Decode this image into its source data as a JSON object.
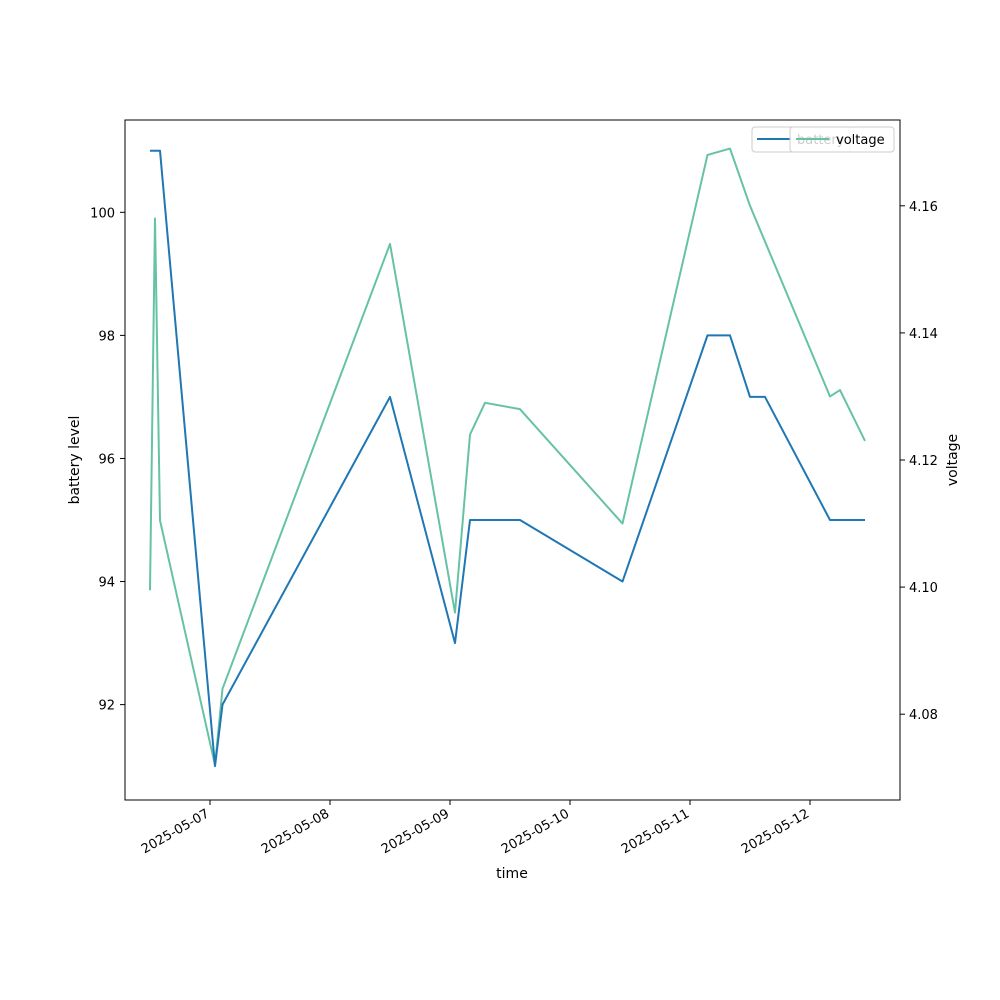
{
  "chart_data": {
    "type": "line",
    "xlabel": "time",
    "ylabel": "battery level",
    "ylabel_right": "voltage",
    "x_ticks": [
      "2025-05-07",
      "2025-05-08",
      "2025-05-09",
      "2025-05-10",
      "2025-05-11",
      "2025-05-12"
    ],
    "x_range": [
      "2025-05-06 07:00",
      "2025-05-12 18:00"
    ],
    "y_left_ticks": [
      92,
      94,
      96,
      98,
      100
    ],
    "y_left_range": [
      90.45,
      101.5
    ],
    "y_right_ticks": [
      4.08,
      4.1,
      4.12,
      4.14,
      4.16
    ],
    "y_right_range": [
      4.0665,
      4.1735
    ],
    "legend_placement": "top-right",
    "grid": false,
    "series": [
      {
        "name": "battery",
        "axis": "left",
        "color": "#1f77b4",
        "points": [
          [
            "2025-05-06 12:00",
            101
          ],
          [
            "2025-05-06 14:00",
            101
          ],
          [
            "2025-05-07 01:00",
            91
          ],
          [
            "2025-05-07 02:30",
            92
          ],
          [
            "2025-05-08 12:00",
            97
          ],
          [
            "2025-05-09 01:00",
            93
          ],
          [
            "2025-05-09 04:00",
            95
          ],
          [
            "2025-05-09 14:00",
            95
          ],
          [
            "2025-05-10 10:30",
            94
          ],
          [
            "2025-05-11 03:30",
            98
          ],
          [
            "2025-05-11 08:00",
            98
          ],
          [
            "2025-05-11 12:00",
            97
          ],
          [
            "2025-05-11 15:00",
            97
          ],
          [
            "2025-05-12 04:00",
            95
          ],
          [
            "2025-05-12 11:00",
            95
          ]
        ]
      },
      {
        "name": "voltage",
        "axis": "right",
        "color": "#66c2a5",
        "points": [
          [
            "2025-05-06 12:00",
            4.0995
          ],
          [
            "2025-05-06 13:00",
            4.158
          ],
          [
            "2025-05-06 14:00",
            4.1105
          ],
          [
            "2025-05-07 01:00",
            4.072
          ],
          [
            "2025-05-07 02:30",
            4.084
          ],
          [
            "2025-05-08 12:00",
            4.154
          ],
          [
            "2025-05-09 01:00",
            4.096
          ],
          [
            "2025-05-09 04:00",
            4.124
          ],
          [
            "2025-05-09 07:00",
            4.129
          ],
          [
            "2025-05-09 14:00",
            4.128
          ],
          [
            "2025-05-10 10:30",
            4.11
          ],
          [
            "2025-05-11 03:30",
            4.168
          ],
          [
            "2025-05-11 08:00",
            4.169
          ],
          [
            "2025-05-11 12:00",
            4.16
          ],
          [
            "2025-05-12 04:00",
            4.13
          ],
          [
            "2025-05-12 06:00",
            4.131
          ],
          [
            "2025-05-12 11:00",
            4.123
          ]
        ]
      }
    ],
    "legend_entries": [
      "battery",
      "voltage"
    ]
  }
}
